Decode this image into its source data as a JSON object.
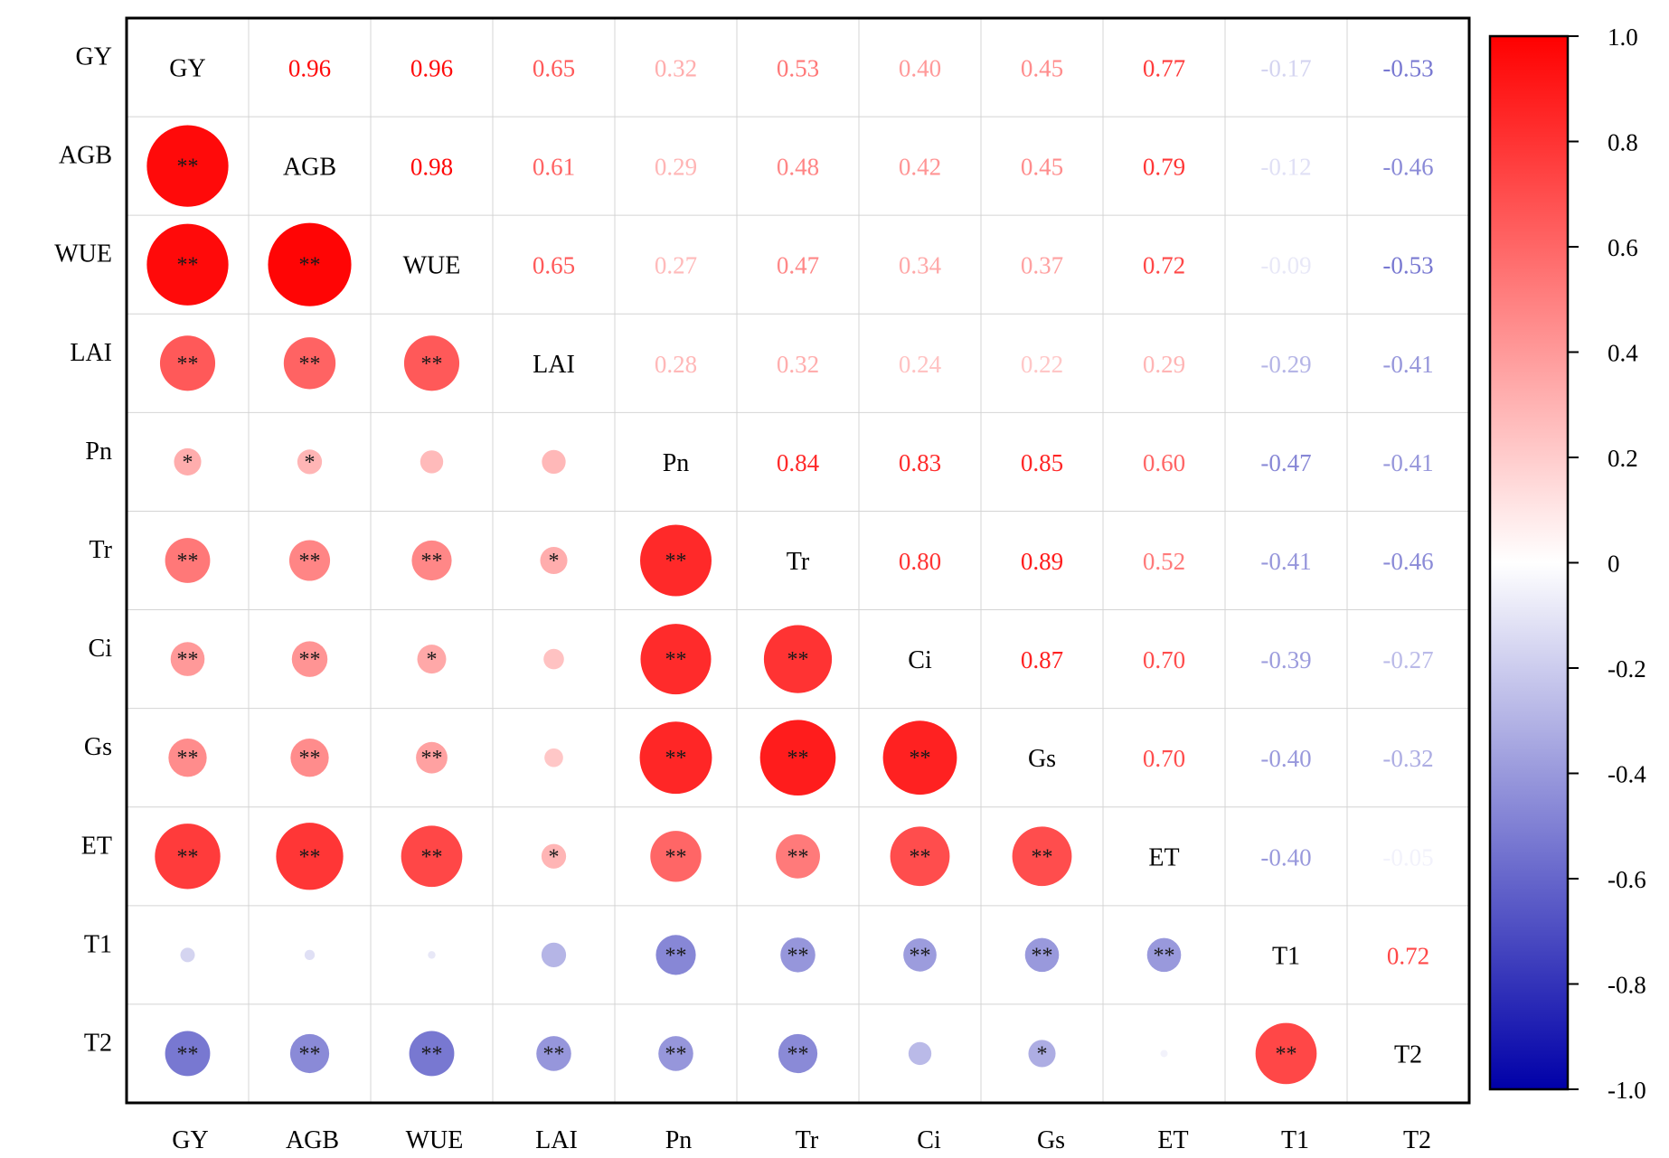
{
  "chart_data": {
    "type": "heatmap",
    "variables": [
      "GY",
      "AGB",
      "WUE",
      "LAI",
      "Pn",
      "Tr",
      "Ci",
      "Gs",
      "ET",
      "T1",
      "T2"
    ],
    "matrix": [
      [
        1.0,
        0.96,
        0.96,
        0.65,
        0.32,
        0.53,
        0.4,
        0.45,
        0.77,
        -0.17,
        -0.53
      ],
      [
        0.96,
        1.0,
        0.98,
        0.61,
        0.29,
        0.48,
        0.42,
        0.45,
        0.79,
        -0.12,
        -0.46
      ],
      [
        0.96,
        0.98,
        1.0,
        0.65,
        0.27,
        0.47,
        0.34,
        0.37,
        0.72,
        -0.09,
        -0.53
      ],
      [
        0.65,
        0.61,
        0.65,
        1.0,
        0.28,
        0.32,
        0.24,
        0.22,
        0.29,
        -0.29,
        -0.41
      ],
      [
        0.32,
        0.29,
        0.27,
        0.28,
        1.0,
        0.84,
        0.83,
        0.85,
        0.6,
        -0.47,
        -0.41
      ],
      [
        0.53,
        0.48,
        0.47,
        0.32,
        0.84,
        1.0,
        0.8,
        0.89,
        0.52,
        -0.41,
        -0.46
      ],
      [
        0.4,
        0.42,
        0.34,
        0.24,
        0.83,
        0.8,
        1.0,
        0.87,
        0.7,
        -0.39,
        -0.27
      ],
      [
        0.45,
        0.45,
        0.37,
        0.22,
        0.85,
        0.89,
        0.87,
        1.0,
        0.7,
        -0.4,
        -0.32
      ],
      [
        0.77,
        0.79,
        0.72,
        0.29,
        0.6,
        0.52,
        0.7,
        0.7,
        1.0,
        -0.4,
        -0.05
      ],
      [
        -0.17,
        -0.12,
        -0.09,
        -0.29,
        -0.47,
        -0.41,
        -0.39,
        -0.4,
        -0.4,
        1.0,
        0.72
      ],
      [
        -0.53,
        -0.46,
        -0.53,
        -0.41,
        -0.41,
        -0.46,
        -0.27,
        -0.32,
        -0.05,
        0.72,
        1.0
      ]
    ],
    "significance": [
      [
        "",
        "",
        "",
        "",
        "",
        "",
        "",
        "",
        "",
        "",
        ""
      ],
      [
        "**",
        "",
        "",
        "",
        "",
        "",
        "",
        "",
        "",
        "",
        ""
      ],
      [
        "**",
        "**",
        "",
        "",
        "",
        "",
        "",
        "",
        "",
        "",
        ""
      ],
      [
        "**",
        "**",
        "**",
        "",
        "",
        "",
        "",
        "",
        "",
        "",
        ""
      ],
      [
        "*",
        "*",
        "",
        "",
        "",
        "",
        "",
        "",
        "",
        "",
        ""
      ],
      [
        "**",
        "**",
        "**",
        "*",
        "**",
        "",
        "",
        "",
        "",
        "",
        ""
      ],
      [
        "**",
        "**",
        "*",
        "",
        "**",
        "**",
        "",
        "",
        "",
        "",
        ""
      ],
      [
        "**",
        "**",
        "**",
        "",
        "**",
        "**",
        "**",
        "",
        "",
        "",
        ""
      ],
      [
        "**",
        "**",
        "**",
        "*",
        "**",
        "**",
        "**",
        "**",
        "",
        "",
        ""
      ],
      [
        "",
        "",
        "",
        "",
        "**",
        "**",
        "**",
        "**",
        "**",
        "",
        ""
      ],
      [
        "**",
        "**",
        "**",
        "**",
        "**",
        "**",
        "",
        "*",
        "",
        "**",
        ""
      ]
    ],
    "colorbar": {
      "range": [
        -1.0,
        1.0
      ],
      "ticks": [
        "1.0",
        "0.8",
        "0.6",
        "0.4",
        "0.2",
        "0",
        "-0.2",
        "-0.4",
        "-0.6",
        "-0.8",
        "-1.0"
      ],
      "colors": {
        "negative": "#0000a8",
        "zero": "#ffffff",
        "positive": "#ff0000"
      }
    },
    "layout_style": "lower triangle circles sized by |r|, upper triangle numeric values, variable names on diagonal",
    "grid": true
  }
}
